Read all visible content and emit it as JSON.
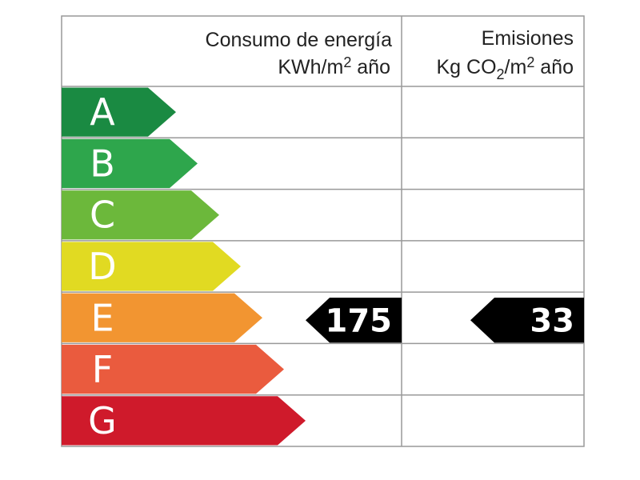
{
  "header": {
    "energy_title": "Consumo de energía",
    "energy_unit": [
      "KWh/m",
      "2",
      " año"
    ],
    "emissions_title": "Emisiones",
    "emissions_unit": [
      "Kg CO",
      "2",
      "/m",
      "2",
      " año"
    ]
  },
  "classes": [
    {
      "letter": "A",
      "color": "#1a8a42"
    },
    {
      "letter": "B",
      "color": "#2ea64c"
    },
    {
      "letter": "C",
      "color": "#6cb83b"
    },
    {
      "letter": "D",
      "color": "#e1da22"
    },
    {
      "letter": "E",
      "color": "#f29531"
    },
    {
      "letter": "F",
      "color": "#ea5b3e"
    },
    {
      "letter": "G",
      "color": "#cf1a2b"
    }
  ],
  "energy": {
    "value": 175,
    "class": "E"
  },
  "emissions": {
    "value": 33,
    "class": "E"
  }
}
